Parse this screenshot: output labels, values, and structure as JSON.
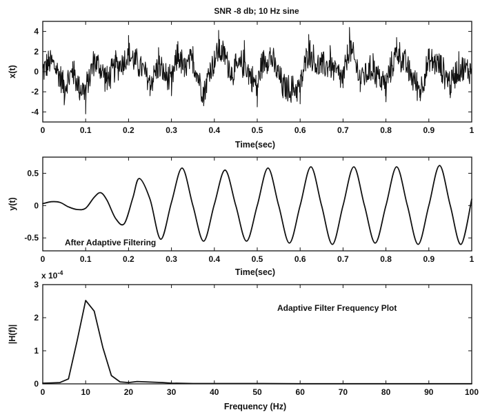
{
  "chart_data": [
    {
      "type": "line",
      "title": "SNR -8 db; 10 Hz sine",
      "xlabel": "Time(sec)",
      "ylabel": "x(t)",
      "xlim": [
        0,
        1
      ],
      "ylim": [
        -5,
        5
      ],
      "xticks": [
        0,
        0.1,
        0.2,
        0.3,
        0.4,
        0.5,
        0.6,
        0.7,
        0.8,
        0.9,
        1
      ],
      "xtick_labels": [
        "0",
        "0.1",
        "0.2",
        "0.3",
        "0.4",
        "0.5",
        "0.6",
        "0.7",
        "0.8",
        "0.9",
        "1"
      ],
      "yticks": [
        -4,
        -2,
        0,
        2,
        4
      ],
      "ytick_labels": [
        "-4",
        "-2",
        "0",
        "2",
        "4"
      ],
      "grid": false,
      "series": [
        {
          "signal": "noisy 10 Hz sine",
          "x": [
            0,
            0.02,
            0.04,
            0.05,
            0.07,
            0.085,
            0.1,
            0.12,
            0.15,
            0.17,
            0.2,
            0.215,
            0.25,
            0.27,
            0.3,
            0.315,
            0.33,
            0.35,
            0.375,
            0.39,
            0.41,
            0.425,
            0.44,
            0.47,
            0.5,
            0.51,
            0.53,
            0.56,
            0.6,
            0.62,
            0.64,
            0.67,
            0.7,
            0.715,
            0.74,
            0.77,
            0.8,
            0.825,
            0.85,
            0.88,
            0.9,
            0.915,
            0.95,
            0.97,
            1
          ],
          "values": [
            0.3,
            1.2,
            -1.5,
            -3.3,
            1.0,
            -2.5,
            -4.2,
            1.4,
            -1.8,
            2.1,
            3.6,
            1.5,
            -2.4,
            2.4,
            -2.4,
            3.0,
            -0.5,
            2.5,
            -3.4,
            0.9,
            4.1,
            2.3,
            -0.8,
            3.1,
            -3.5,
            1.1,
            2.4,
            -2.6,
            -3.2,
            3.7,
            0.5,
            2.6,
            -1.6,
            4.4,
            -2.0,
            1.8,
            -3.0,
            3.4,
            0.8,
            -2.9,
            2.1,
            1.2,
            -2.6,
            2.0,
            0.4
          ]
        }
      ]
    },
    {
      "type": "line",
      "title": "",
      "xlabel": "Time(sec)",
      "ylabel": "y(t)",
      "annotation": "After Adaptive Filtering",
      "xlim": [
        0,
        1
      ],
      "ylim": [
        -0.7,
        0.75
      ],
      "xticks": [
        0,
        0.1,
        0.2,
        0.3,
        0.4,
        0.5,
        0.6,
        0.7,
        0.8,
        0.9,
        1
      ],
      "xtick_labels": [
        "0",
        "0.1",
        "0.2",
        "0.3",
        "0.4",
        "0.5",
        "0.6",
        "0.7",
        "0.8",
        "0.9",
        "1"
      ],
      "yticks": [
        -0.5,
        0,
        0.5
      ],
      "ytick_labels": [
        "-0.5",
        "0",
        "0.5"
      ],
      "grid": false,
      "series": [
        {
          "x": [
            0,
            0.02,
            0.04,
            0.06,
            0.08,
            0.1,
            0.12,
            0.135,
            0.15,
            0.17,
            0.19,
            0.21,
            0.225,
            0.25,
            0.275,
            0.3,
            0.325,
            0.35,
            0.375,
            0.4,
            0.425,
            0.45,
            0.475,
            0.5,
            0.525,
            0.55,
            0.575,
            0.6,
            0.625,
            0.65,
            0.675,
            0.7,
            0.725,
            0.75,
            0.775,
            0.8,
            0.825,
            0.85,
            0.875,
            0.9,
            0.925,
            0.95,
            0.975,
            1
          ],
          "values": [
            0.03,
            0.06,
            0.05,
            -0.02,
            -0.06,
            -0.04,
            0.13,
            0.2,
            0.08,
            -0.2,
            -0.28,
            0.12,
            0.42,
            0.1,
            -0.52,
            0.05,
            0.58,
            0.0,
            -0.55,
            0.02,
            0.55,
            0.0,
            -0.55,
            0.0,
            0.58,
            0.0,
            -0.58,
            0.0,
            0.6,
            0.0,
            -0.6,
            0.0,
            0.6,
            0.0,
            -0.58,
            0.0,
            0.6,
            0.0,
            -0.6,
            0.0,
            0.62,
            0.0,
            -0.6,
            0.1
          ]
        }
      ]
    },
    {
      "type": "line",
      "title": "",
      "xlabel": "Frequency (Hz)",
      "ylabel": "|H(f)|",
      "annotation": "Adaptive Filter Frequency Plot",
      "scale_label": "x 10",
      "scale_exponent": "-4",
      "xlim": [
        0,
        100
      ],
      "ylim": [
        0,
        3
      ],
      "xticks": [
        0,
        10,
        20,
        30,
        40,
        50,
        60,
        70,
        80,
        90,
        100
      ],
      "xtick_labels": [
        "0",
        "10",
        "20",
        "30",
        "40",
        "50",
        "60",
        "70",
        "80",
        "90",
        "100"
      ],
      "yticks": [
        0,
        1,
        2,
        3
      ],
      "ytick_labels": [
        "0",
        "1",
        "2",
        "3"
      ],
      "grid": false,
      "series": [
        {
          "x": [
            0,
            2,
            4,
            6,
            8,
            10,
            12,
            14,
            16,
            18,
            20,
            22,
            24,
            26,
            28,
            30,
            35,
            40,
            50,
            60,
            70,
            80,
            90,
            100
          ],
          "values": [
            0.02,
            0.03,
            0.04,
            0.15,
            1.3,
            2.52,
            2.2,
            1.1,
            0.25,
            0.06,
            0.04,
            0.07,
            0.06,
            0.05,
            0.04,
            0.02,
            0.01,
            0.01,
            0.01,
            0.005,
            0.005,
            0.005,
            0.005,
            0.005
          ]
        }
      ]
    }
  ]
}
